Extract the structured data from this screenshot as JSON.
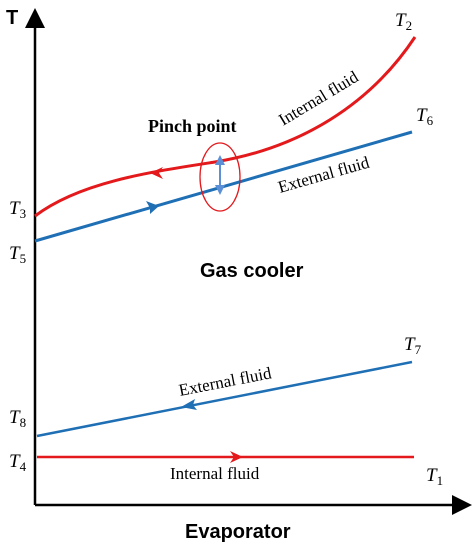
{
  "axes": {
    "y_label": "T",
    "x_label": "Evaporator"
  },
  "annotations": {
    "gas_cooler": "Gas cooler",
    "pinch_point": "Pinch point"
  },
  "fluid_labels": {
    "gc_internal": "Internal fluid",
    "gc_external": "External fluid",
    "ev_external": "External fluid",
    "ev_internal": "Internal fluid"
  },
  "points": {
    "t1": {
      "letter": "T",
      "sub": "1"
    },
    "t2": {
      "letter": "T",
      "sub": "2"
    },
    "t3": {
      "letter": "T",
      "sub": "3"
    },
    "t4": {
      "letter": "T",
      "sub": "4"
    },
    "t5": {
      "letter": "T",
      "sub": "5"
    },
    "t6": {
      "letter": "T",
      "sub": "6"
    },
    "t7": {
      "letter": "T",
      "sub": "7"
    },
    "t8": {
      "letter": "T",
      "sub": "8"
    }
  },
  "colors": {
    "internal": "#e3191c",
    "external": "#1f6fb5",
    "pinch_arrow": "#5b8fd6",
    "pinch_ellipse": "#e3191c",
    "axis": "#000000"
  }
}
